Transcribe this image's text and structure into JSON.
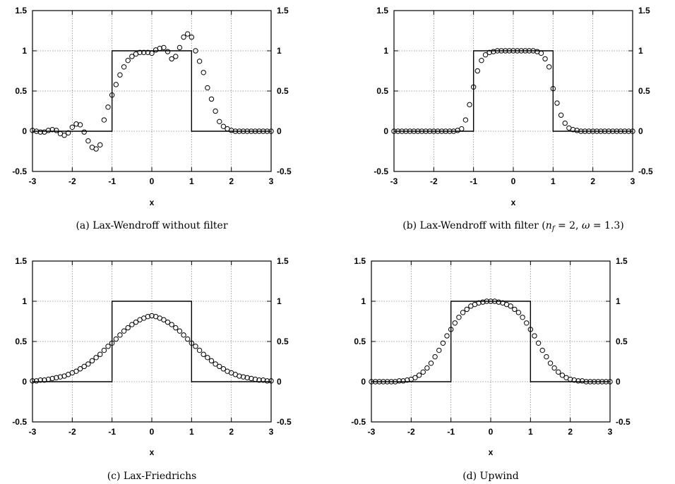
{
  "chart_data": [
    {
      "type": "scatter",
      "caption": "(a)  Lax-Wendroff without filter",
      "xlabel": "x",
      "xlim": [
        -3,
        3
      ],
      "ylim": [
        -0.5,
        1.5
      ],
      "xticks": [
        "-3",
        "-2",
        "-1",
        "0",
        "1",
        "2",
        "3"
      ],
      "yticks": [
        "1.5",
        "1",
        "0.5",
        "0",
        "-0.5"
      ],
      "grid": true,
      "exact": {
        "x": [
          -3,
          -1,
          -1,
          1,
          1,
          3
        ],
        "y": [
          0,
          0,
          1,
          1,
          0,
          0
        ]
      },
      "numerical": {
        "x": [
          -3.0,
          -2.9,
          -2.8,
          -2.7,
          -2.6,
          -2.5,
          -2.4,
          -2.3,
          -2.2,
          -2.1,
          -2.0,
          -1.9,
          -1.8,
          -1.7,
          -1.6,
          -1.5,
          -1.4,
          -1.3,
          -1.2,
          -1.1,
          -1.0,
          -0.9,
          -0.8,
          -0.7,
          -0.6,
          -0.5,
          -0.4,
          -0.3,
          -0.2,
          -0.1,
          0.0,
          0.1,
          0.2,
          0.3,
          0.4,
          0.5,
          0.6,
          0.7,
          0.8,
          0.9,
          1.0,
          1.1,
          1.2,
          1.3,
          1.4,
          1.5,
          1.6,
          1.7,
          1.8,
          1.9,
          2.0,
          2.1,
          2.2,
          2.3,
          2.4,
          2.5,
          2.6,
          2.7,
          2.8,
          2.9,
          3.0
        ],
        "y": [
          0.01,
          0.0,
          -0.01,
          -0.01,
          0.01,
          0.02,
          0.01,
          -0.03,
          -0.05,
          -0.02,
          0.05,
          0.09,
          0.08,
          -0.01,
          -0.12,
          -0.2,
          -0.22,
          -0.17,
          0.14,
          0.3,
          0.45,
          0.58,
          0.7,
          0.8,
          0.88,
          0.93,
          0.96,
          0.98,
          0.98,
          0.98,
          0.97,
          1.01,
          1.03,
          1.04,
          0.99,
          0.9,
          0.93,
          1.04,
          1.17,
          1.21,
          1.17,
          1.0,
          0.87,
          0.73,
          0.54,
          0.4,
          0.25,
          0.12,
          0.06,
          0.03,
          0.01,
          0.0,
          0.0,
          0.0,
          0.0,
          0.0,
          0.0,
          0.0,
          0.0,
          0.0,
          0.0
        ]
      }
    },
    {
      "type": "scatter",
      "caption_prefix": "(b)  Lax-Wendroff with filter (",
      "caption_nf": "n",
      "caption_nf_sub": "f",
      "caption_mid": " = 2, ",
      "caption_omega": "ω",
      "caption_suffix": " = 1.3)",
      "xlabel": "x",
      "xlim": [
        -3,
        3
      ],
      "ylim": [
        -0.5,
        1.5
      ],
      "xticks": [
        "-3",
        "-2",
        "-1",
        "0",
        "1",
        "2",
        "3"
      ],
      "yticks": [
        "1.5",
        "1",
        "0.5",
        "0",
        "-0.5"
      ],
      "grid": true,
      "exact": {
        "x": [
          -3,
          -1,
          -1,
          1,
          1,
          3
        ],
        "y": [
          0,
          0,
          1,
          1,
          0,
          0
        ]
      },
      "numerical": {
        "x": [
          -3.0,
          -2.9,
          -2.8,
          -2.7,
          -2.6,
          -2.5,
          -2.4,
          -2.3,
          -2.2,
          -2.1,
          -2.0,
          -1.9,
          -1.8,
          -1.7,
          -1.6,
          -1.5,
          -1.4,
          -1.3,
          -1.2,
          -1.1,
          -1.0,
          -0.9,
          -0.8,
          -0.7,
          -0.6,
          -0.5,
          -0.4,
          -0.3,
          -0.2,
          -0.1,
          0.0,
          0.1,
          0.2,
          0.3,
          0.4,
          0.5,
          0.6,
          0.7,
          0.8,
          0.9,
          1.0,
          1.1,
          1.2,
          1.3,
          1.4,
          1.5,
          1.6,
          1.7,
          1.8,
          1.9,
          2.0,
          2.1,
          2.2,
          2.3,
          2.4,
          2.5,
          2.6,
          2.7,
          2.8,
          2.9,
          3.0
        ],
        "y": [
          0.0,
          0.0,
          0.0,
          0.0,
          0.0,
          0.0,
          0.0,
          0.0,
          0.0,
          0.0,
          0.0,
          0.0,
          0.0,
          0.0,
          0.0,
          0.0,
          0.01,
          0.03,
          0.14,
          0.33,
          0.55,
          0.75,
          0.88,
          0.95,
          0.98,
          0.99,
          1.0,
          1.0,
          1.0,
          1.0,
          1.0,
          1.0,
          1.0,
          1.0,
          1.0,
          1.0,
          0.99,
          0.97,
          0.9,
          0.8,
          0.53,
          0.35,
          0.2,
          0.1,
          0.04,
          0.02,
          0.01,
          0.0,
          0.0,
          0.0,
          0.0,
          0.0,
          0.0,
          0.0,
          0.0,
          0.0,
          0.0,
          0.0,
          0.0,
          0.0,
          0.0
        ]
      }
    },
    {
      "type": "scatter",
      "caption": "(c)  Lax-Friedrichs",
      "xlabel": "x",
      "xlim": [
        -3,
        3
      ],
      "ylim": [
        -0.5,
        1.5
      ],
      "xticks": [
        "-3",
        "-2",
        "-1",
        "0",
        "1",
        "2",
        "3"
      ],
      "yticks": [
        "1.5",
        "1",
        "0.5",
        "0",
        "-0.5"
      ],
      "grid": true,
      "exact": {
        "x": [
          -3,
          -1,
          -1,
          1,
          1,
          3
        ],
        "y": [
          0,
          0,
          1,
          1,
          0,
          0
        ]
      },
      "numerical": {
        "x": [
          -3.0,
          -2.9,
          -2.8,
          -2.7,
          -2.6,
          -2.5,
          -2.4,
          -2.3,
          -2.2,
          -2.1,
          -2.0,
          -1.9,
          -1.8,
          -1.7,
          -1.6,
          -1.5,
          -1.4,
          -1.3,
          -1.2,
          -1.1,
          -1.0,
          -0.9,
          -0.8,
          -0.7,
          -0.6,
          -0.5,
          -0.4,
          -0.3,
          -0.2,
          -0.1,
          0.0,
          0.1,
          0.2,
          0.3,
          0.4,
          0.5,
          0.6,
          0.7,
          0.8,
          0.9,
          1.0,
          1.1,
          1.2,
          1.3,
          1.4,
          1.5,
          1.6,
          1.7,
          1.8,
          1.9,
          2.0,
          2.1,
          2.2,
          2.3,
          2.4,
          2.5,
          2.6,
          2.7,
          2.8,
          2.9,
          3.0
        ],
        "y": [
          0.01,
          0.01,
          0.02,
          0.02,
          0.03,
          0.04,
          0.05,
          0.06,
          0.07,
          0.09,
          0.11,
          0.13,
          0.16,
          0.19,
          0.22,
          0.26,
          0.3,
          0.34,
          0.39,
          0.44,
          0.48,
          0.53,
          0.58,
          0.63,
          0.67,
          0.71,
          0.74,
          0.77,
          0.79,
          0.81,
          0.82,
          0.81,
          0.79,
          0.77,
          0.74,
          0.71,
          0.67,
          0.63,
          0.58,
          0.53,
          0.48,
          0.44,
          0.39,
          0.34,
          0.3,
          0.26,
          0.22,
          0.19,
          0.16,
          0.13,
          0.11,
          0.09,
          0.07,
          0.06,
          0.05,
          0.04,
          0.03,
          0.02,
          0.02,
          0.01,
          0.01
        ]
      }
    },
    {
      "type": "scatter",
      "caption": "(d)  Upwind",
      "xlabel": "x",
      "xlim": [
        -3,
        3
      ],
      "ylim": [
        -0.5,
        1.5
      ],
      "xticks": [
        "-3",
        "-2",
        "-1",
        "0",
        "1",
        "2",
        "3"
      ],
      "yticks": [
        "1.5",
        "1",
        "0.5",
        "0",
        "-0.5"
      ],
      "grid": true,
      "exact": {
        "x": [
          -3,
          -1,
          -1,
          1,
          1,
          3
        ],
        "y": [
          0,
          0,
          1,
          1,
          0,
          0
        ]
      },
      "numerical": {
        "x": [
          -3.0,
          -2.9,
          -2.8,
          -2.7,
          -2.6,
          -2.5,
          -2.4,
          -2.3,
          -2.2,
          -2.1,
          -2.0,
          -1.9,
          -1.8,
          -1.7,
          -1.6,
          -1.5,
          -1.4,
          -1.3,
          -1.2,
          -1.1,
          -1.0,
          -0.9,
          -0.8,
          -0.7,
          -0.6,
          -0.5,
          -0.4,
          -0.3,
          -0.2,
          -0.1,
          0.0,
          0.1,
          0.2,
          0.3,
          0.4,
          0.5,
          0.6,
          0.7,
          0.8,
          0.9,
          1.0,
          1.1,
          1.2,
          1.3,
          1.4,
          1.5,
          1.6,
          1.7,
          1.8,
          1.9,
          2.0,
          2.1,
          2.2,
          2.3,
          2.4,
          2.5,
          2.6,
          2.7,
          2.8,
          2.9,
          3.0
        ],
        "y": [
          0.0,
          0.0,
          0.0,
          0.0,
          0.0,
          0.0,
          0.0,
          0.01,
          0.01,
          0.02,
          0.03,
          0.05,
          0.08,
          0.12,
          0.17,
          0.23,
          0.31,
          0.39,
          0.48,
          0.57,
          0.65,
          0.73,
          0.8,
          0.86,
          0.9,
          0.94,
          0.96,
          0.98,
          0.99,
          1.0,
          1.0,
          1.0,
          0.99,
          0.98,
          0.96,
          0.94,
          0.9,
          0.86,
          0.8,
          0.73,
          0.65,
          0.57,
          0.48,
          0.39,
          0.31,
          0.23,
          0.17,
          0.12,
          0.08,
          0.05,
          0.03,
          0.02,
          0.01,
          0.01,
          0.0,
          0.0,
          0.0,
          0.0,
          0.0,
          0.0,
          0.0
        ]
      }
    }
  ]
}
